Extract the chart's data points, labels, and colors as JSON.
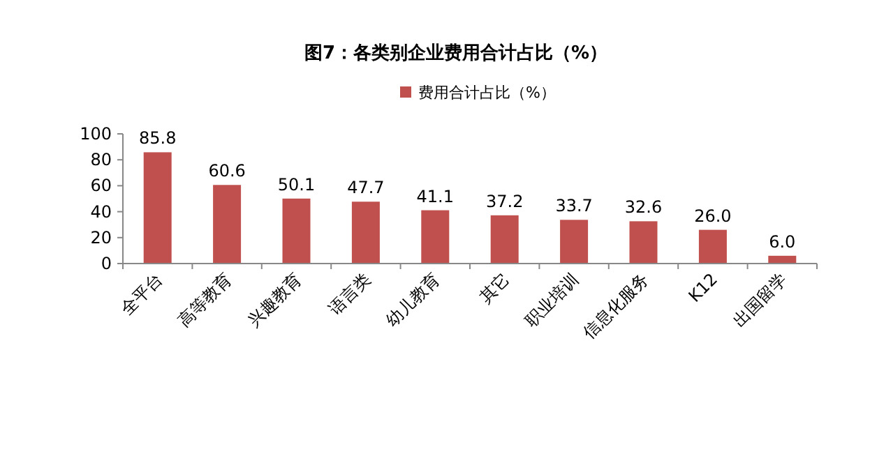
{
  "chart_data": {
    "type": "bar",
    "title": "图7：各类别企业费用合计占比（%）",
    "categories": [
      "全平台",
      "高等教育",
      "兴趣教育",
      "语言类",
      "幼儿教育",
      "其它",
      "职业培训",
      "信息化服务",
      "K12",
      "出国留学"
    ],
    "series": [
      {
        "name": "费用合计占比（%）",
        "color": "#c0504d",
        "values": [
          85.8,
          60.6,
          50.1,
          47.7,
          41.1,
          37.2,
          33.7,
          32.6,
          26.0,
          6.0
        ],
        "value_labels": [
          "85.8",
          "60.6",
          "50.1",
          "47.7",
          "41.1",
          "37.2",
          "33.7",
          "32.6",
          "26.0",
          "6.0"
        ]
      }
    ],
    "ylim": [
      0,
      100
    ],
    "yticks": [
      0,
      20,
      40,
      60,
      80,
      100
    ],
    "legend": "top"
  }
}
